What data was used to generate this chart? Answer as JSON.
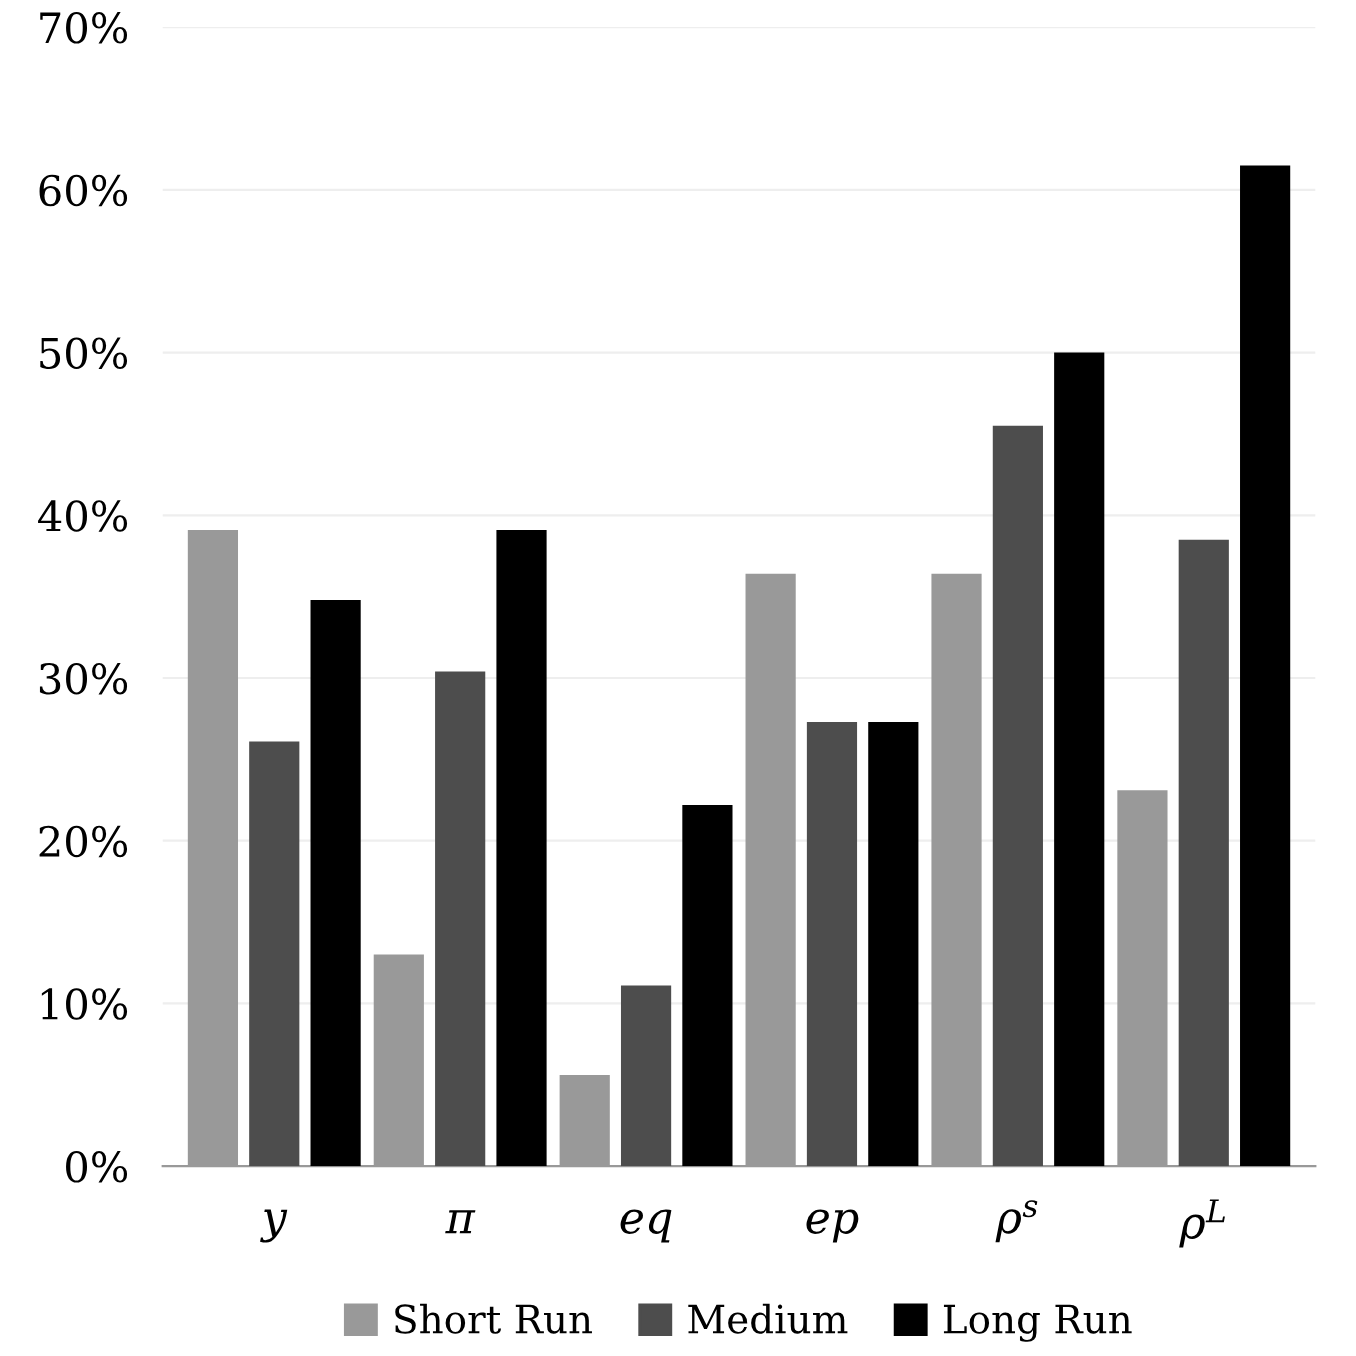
{
  "chart_data": {
    "type": "bar",
    "categories": [
      "y",
      "π",
      "eq",
      "ep",
      "ρ$^{s}$",
      "ρ$^{L}$"
    ],
    "series": [
      {
        "name": "Short Run",
        "color": "#999999",
        "values": [
          39.1,
          13.0,
          5.6,
          36.4,
          36.4,
          23.1
        ]
      },
      {
        "name": "Medium",
        "color": "#4d4d4d",
        "values": [
          26.1,
          30.4,
          11.1,
          27.3,
          45.5,
          38.5
        ]
      },
      {
        "name": "Long Run",
        "color": "#000000",
        "values": [
          34.8,
          39.1,
          22.2,
          27.3,
          50.0,
          61.5
        ]
      }
    ],
    "ylim": [
      0,
      70
    ],
    "yticks": [
      {
        "value": 0,
        "label": "0%"
      },
      {
        "value": 10,
        "label": "10%"
      },
      {
        "value": 20,
        "label": "20%"
      },
      {
        "value": 30,
        "label": "30%"
      },
      {
        "value": 40,
        "label": "40%"
      },
      {
        "value": 50,
        "label": "50%"
      },
      {
        "value": 60,
        "label": "60%"
      },
      {
        "value": 70,
        "label": "70%"
      }
    ],
    "grid": "y",
    "legend": "bottom"
  }
}
